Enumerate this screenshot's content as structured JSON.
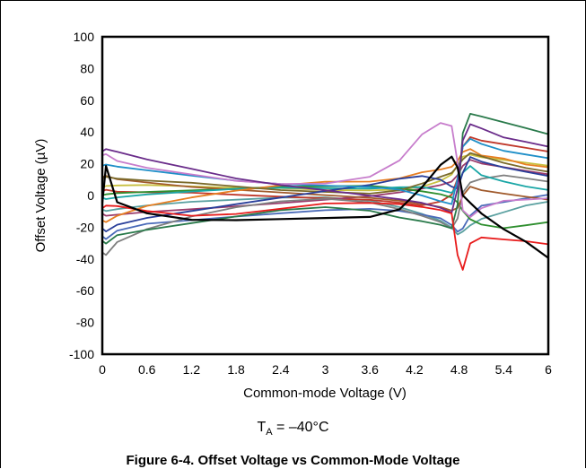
{
  "figure": {
    "condition_main": "T",
    "condition_sub": "A",
    "condition_rest": " = –40°C",
    "caption": "Figure 6-4. Offset Voltage vs Common-Mode Voltage"
  },
  "chart_data": {
    "type": "line",
    "title": "",
    "xlabel": "Common-mode Voltage (V)",
    "ylabel": "Offset Voltage (µV)",
    "xlim": [
      0,
      6
    ],
    "ylim": [
      -100,
      100
    ],
    "xticks": [
      "0",
      "0.6",
      "1.2",
      "1.8",
      "2.4",
      "3",
      "3.6",
      "4.2",
      "4.8",
      "5.4",
      "6"
    ],
    "yticks": [
      "100",
      "80",
      "60",
      "40",
      "20",
      "0",
      "-20",
      "-40",
      "-60",
      "-80",
      "-100"
    ],
    "grid": false,
    "legend": "none",
    "x": [
      0,
      0.05,
      0.2,
      0.6,
      1.2,
      1.8,
      2.4,
      3.0,
      3.6,
      4.0,
      4.3,
      4.55,
      4.7,
      4.78,
      4.85,
      4.95,
      5.1,
      5.4,
      5.7,
      6.0
    ],
    "series": [
      {
        "color": "#000000",
        "values": [
          -5,
          18,
          -5,
          -12,
          -16,
          -16,
          -15,
          -14,
          -13,
          -8,
          6,
          20,
          25,
          18,
          0,
          -5,
          -12,
          -22,
          -30,
          -40
        ]
      },
      {
        "color": "#e81c1c",
        "values": [
          -8,
          -6,
          -6,
          -9,
          -12,
          -11,
          -8,
          -5,
          -5,
          -6,
          -8,
          -10,
          -12,
          -38,
          -47,
          -30,
          -26,
          -27,
          -28,
          -30
        ]
      },
      {
        "color": "#6a2c8a",
        "values": [
          28,
          29,
          27,
          22,
          16,
          10,
          6,
          3,
          0,
          -2,
          -4,
          -7,
          -10,
          5,
          35,
          45,
          42,
          36,
          33,
          30
        ]
      },
      {
        "color": "#c77dcc",
        "values": [
          25,
          26,
          22,
          18,
          14,
          10,
          8,
          8,
          12,
          22,
          38,
          45,
          43,
          20,
          -10,
          -14,
          -8,
          -3,
          -2,
          -1
        ]
      },
      {
        "color": "#2a7a4b",
        "values": [
          -28,
          -30,
          -25,
          -22,
          -18,
          -14,
          -10,
          -8,
          -10,
          -14,
          -16,
          -18,
          -20,
          -5,
          40,
          52,
          50,
          46,
          42,
          38
        ]
      },
      {
        "color": "#1f8fc8",
        "values": [
          18,
          19,
          18,
          16,
          13,
          10,
          8,
          7,
          6,
          4,
          0,
          -4,
          -6,
          10,
          30,
          35,
          32,
          28,
          26,
          24
        ]
      },
      {
        "color": "#2a3f9a",
        "values": [
          -20,
          -22,
          -18,
          -14,
          -10,
          -6,
          -2,
          2,
          6,
          10,
          12,
          10,
          6,
          5,
          15,
          25,
          22,
          18,
          15,
          12
        ]
      },
      {
        "color": "#7a6a2a",
        "values": [
          10,
          11,
          10,
          9,
          8,
          6,
          4,
          3,
          2,
          4,
          8,
          12,
          14,
          18,
          22,
          26,
          24,
          20,
          17,
          15
        ]
      },
      {
        "color": "#e67e22",
        "values": [
          -15,
          -16,
          -12,
          -6,
          -1,
          3,
          6,
          8,
          8,
          10,
          14,
          16,
          18,
          22,
          28,
          30,
          26,
          24,
          20,
          18
        ]
      },
      {
        "color": "#1aa6a6",
        "values": [
          -2,
          -3,
          -2,
          0,
          2,
          4,
          5,
          5,
          5,
          6,
          6,
          4,
          2,
          6,
          14,
          18,
          12,
          8,
          5,
          3
        ]
      },
      {
        "color": "#a05a2c",
        "values": [
          12,
          13,
          11,
          9,
          6,
          4,
          2,
          0,
          -2,
          -4,
          -6,
          -8,
          -10,
          -8,
          0,
          6,
          4,
          2,
          0,
          -2
        ]
      },
      {
        "color": "#7f7f7f",
        "values": [
          -36,
          -38,
          -30,
          -22,
          -14,
          -8,
          -4,
          -2,
          -4,
          -8,
          -12,
          -16,
          -20,
          -14,
          2,
          8,
          10,
          12,
          10,
          8
        ]
      },
      {
        "color": "#2f8f2f",
        "values": [
          0,
          1,
          2,
          3,
          4,
          5,
          6,
          6,
          6,
          4,
          2,
          0,
          -2,
          -5,
          -10,
          -15,
          -18,
          -20,
          -18,
          -16
        ]
      },
      {
        "color": "#c8c040",
        "values": [
          5,
          6,
          6,
          6,
          5,
          4,
          4,
          3,
          3,
          4,
          6,
          10,
          14,
          20,
          25,
          26,
          24,
          22,
          20,
          18
        ]
      },
      {
        "color": "#9b3b6b",
        "values": [
          -12,
          -13,
          -12,
          -10,
          -8,
          -6,
          -4,
          -2,
          0,
          2,
          4,
          6,
          8,
          12,
          18,
          22,
          20,
          18,
          16,
          14
        ]
      },
      {
        "color": "#4a6ab8",
        "values": [
          -25,
          -27,
          -22,
          -18,
          -16,
          -14,
          -12,
          -10,
          -9,
          -10,
          -12,
          -14,
          -18,
          -22,
          -20,
          -12,
          -6,
          -4,
          -2,
          0
        ]
      },
      {
        "color": "#c0392b",
        "values": [
          2,
          3,
          2,
          2,
          2,
          1,
          0,
          -1,
          -2,
          -4,
          -6,
          -4,
          0,
          10,
          30,
          36,
          34,
          32,
          30,
          28
        ]
      },
      {
        "color": "#5aa0a0",
        "values": [
          -8,
          -9,
          -8,
          -6,
          -4,
          -3,
          -2,
          -2,
          -4,
          -8,
          -12,
          -16,
          -20,
          -24,
          -22,
          -18,
          -14,
          -10,
          -6,
          -4
        ]
      }
    ]
  }
}
